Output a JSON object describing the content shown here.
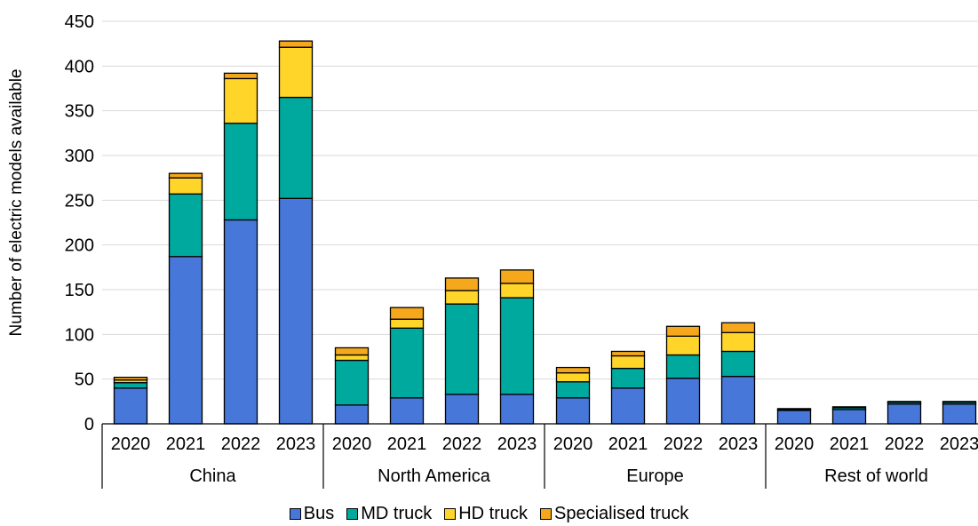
{
  "chart_data": {
    "type": "bar",
    "stacked": true,
    "title": "",
    "xlabel": "",
    "ylabel": "Number of electric models available",
    "ylim": [
      0,
      450
    ],
    "yticks": [
      0,
      50,
      100,
      150,
      200,
      250,
      300,
      350,
      400,
      450
    ],
    "grid": true,
    "legend_position": "bottom",
    "groups": [
      {
        "name": "China",
        "years": [
          "2020",
          "2021",
          "2022",
          "2023"
        ]
      },
      {
        "name": "North America",
        "years": [
          "2020",
          "2021",
          "2022",
          "2023"
        ]
      },
      {
        "name": "Europe",
        "years": [
          "2020",
          "2021",
          "2022",
          "2023"
        ]
      },
      {
        "name": "Rest of world",
        "years": [
          "2020",
          "2021",
          "2022",
          "2023"
        ]
      }
    ],
    "series": [
      {
        "name": "Bus",
        "color": "#4677D9",
        "values": [
          40,
          187,
          228,
          252,
          21,
          29,
          33,
          33,
          29,
          40,
          51,
          53,
          15,
          16,
          22,
          22
        ]
      },
      {
        "name": "MD truck",
        "color": "#00A99D",
        "values": [
          6,
          70,
          108,
          113,
          50,
          78,
          101,
          108,
          18,
          22,
          26,
          28,
          1,
          2,
          2,
          2
        ]
      },
      {
        "name": "HD truck",
        "color": "#FFD52A",
        "values": [
          3,
          18,
          50,
          56,
          6,
          10,
          15,
          16,
          10,
          14,
          21,
          21,
          0,
          0,
          0,
          0
        ]
      },
      {
        "name": "Specialised truck",
        "color": "#F5A81C",
        "values": [
          3,
          5,
          6,
          7,
          8,
          13,
          14,
          15,
          6,
          5,
          11,
          11,
          1,
          1,
          1,
          1
        ]
      }
    ]
  }
}
